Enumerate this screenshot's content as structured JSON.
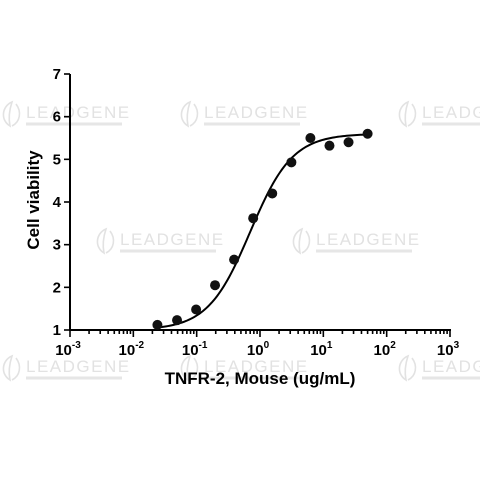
{
  "watermark": {
    "text": "LEADGENE"
  },
  "chart_data": {
    "type": "scatter",
    "xscale": "log",
    "xlim": [
      0.001,
      1000
    ],
    "ylim": [
      1,
      7
    ],
    "xlabel": "TNFR-2, Mouse (ug/mL)",
    "ylabel": "Cell viability",
    "x_ticks": [
      {
        "base": "10",
        "exp": "-3",
        "value": 0.001
      },
      {
        "base": "10",
        "exp": "-2",
        "value": 0.01
      },
      {
        "base": "10",
        "exp": "-1",
        "value": 0.1
      },
      {
        "base": "10",
        "exp": "0",
        "value": 1
      },
      {
        "base": "10",
        "exp": "1",
        "value": 10
      },
      {
        "base": "10",
        "exp": "2",
        "value": 100
      },
      {
        "base": "10",
        "exp": "3",
        "value": 1000
      }
    ],
    "y_ticks": [
      "1",
      "2",
      "3",
      "4",
      "5",
      "6",
      "7"
    ],
    "points": [
      {
        "x": 0.024,
        "y": 1.12
      },
      {
        "x": 0.049,
        "y": 1.23
      },
      {
        "x": 0.098,
        "y": 1.48
      },
      {
        "x": 0.195,
        "y": 2.05
      },
      {
        "x": 0.39,
        "y": 2.65
      },
      {
        "x": 0.78,
        "y": 3.62
      },
      {
        "x": 1.56,
        "y": 4.2
      },
      {
        "x": 3.13,
        "y": 4.93
      },
      {
        "x": 6.25,
        "y": 5.5
      },
      {
        "x": 12.5,
        "y": 5.32
      },
      {
        "x": 25,
        "y": 5.4
      },
      {
        "x": 50,
        "y": 5.6
      }
    ],
    "fit": {
      "model": "4PL",
      "bottom": 1.0,
      "top": 5.6,
      "ec50": 0.7,
      "hill": 1.3,
      "x_range": [
        0.024,
        50
      ]
    },
    "grid": false,
    "legend": "none"
  }
}
